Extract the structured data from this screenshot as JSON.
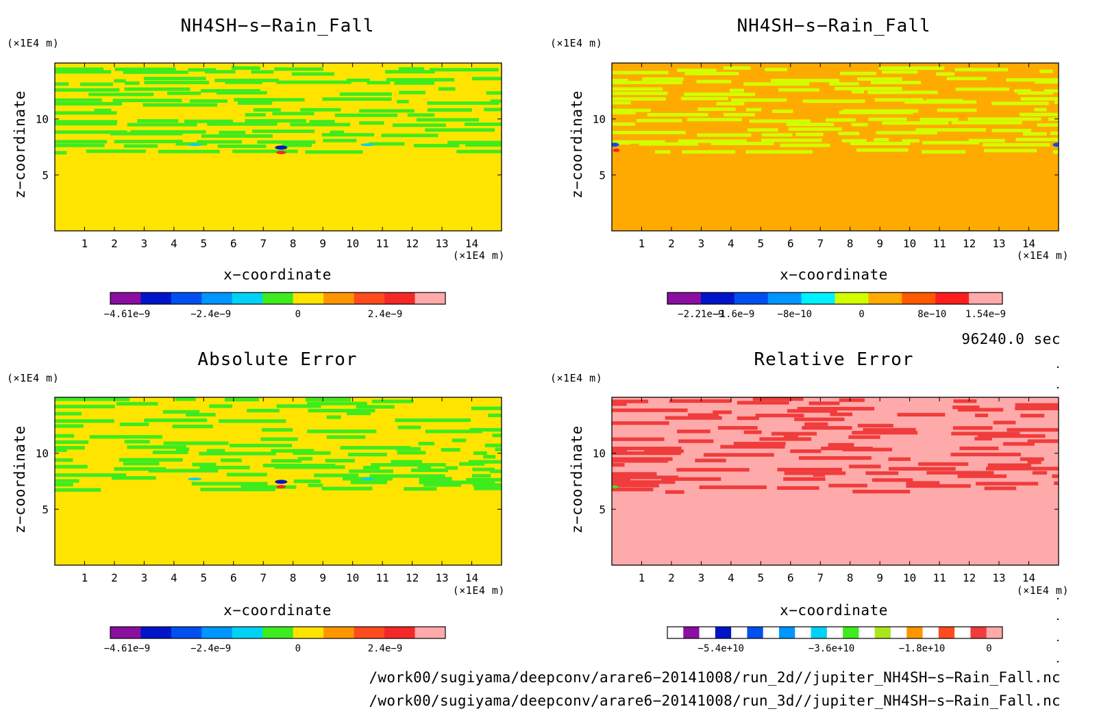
{
  "chart_data": [
    {
      "type": "heatmap",
      "title": "NH4SH−s−Rain_Fall",
      "xlabel": "x−coordinate",
      "ylabel": "z−coordinate",
      "x_unit": "(×1E4 m)",
      "y_unit": "(×1E4 m)",
      "xlim": [
        0,
        15
      ],
      "ylim": [
        0,
        15
      ],
      "x_ticks": [
        "1",
        "2",
        "3",
        "4",
        "5",
        "6",
        "7",
        "8",
        "9",
        "10",
        "11",
        "12",
        "13",
        "14"
      ],
      "y_ticks": [
        "5",
        "10"
      ],
      "background_color": "#ffe400",
      "bands": [
        {
          "z_range": [
            6.9,
            14.9
          ],
          "color": "#3eeb1e",
          "note": "alternating layers with background"
        }
      ],
      "colorbar": {
        "colors": [
          "#8a0fa0",
          "#0014c8",
          "#0050f0",
          "#0096ff",
          "#00d2f5",
          "#3eeb1e",
          "#ffe400",
          "#ff9600",
          "#ff4b1e",
          "#f52828",
          "#ffaaaa"
        ],
        "labels": [
          "−4.61e−9",
          "−2.4e−9",
          "0",
          "2.4e−9"
        ]
      }
    },
    {
      "type": "heatmap",
      "title": "NH4SH−s−Rain_Fall",
      "xlabel": "x−coordinate",
      "ylabel": "z−coordinate",
      "x_unit": "(×1E4 m)",
      "y_unit": "(×1E4 m)",
      "xlim": [
        0,
        15
      ],
      "ylim": [
        0,
        15
      ],
      "x_ticks": [
        "1",
        "2",
        "3",
        "4",
        "5",
        "6",
        "7",
        "8",
        "9",
        "10",
        "11",
        "12",
        "13",
        "14"
      ],
      "y_ticks": [
        "5",
        "10"
      ],
      "background_color": "#ffaa00",
      "bands": [
        {
          "z_range": [
            7.0,
            14.9
          ],
          "color": "#d2ff00",
          "note": "alternating layers with background"
        }
      ],
      "colorbar": {
        "colors": [
          "#8a0fa0",
          "#0014c8",
          "#0050f0",
          "#0096ff",
          "#00f0ff",
          "#d2ff00",
          "#ffaa00",
          "#ff5a00",
          "#ff1e1e",
          "#ffaaaa"
        ],
        "labels": [
          "−2.21e−9",
          "−1.6e−9",
          "−8e−10",
          "0",
          "8e−10",
          "1.54e−9"
        ]
      }
    },
    {
      "type": "heatmap",
      "title": "Absolute Error",
      "xlabel": "x−coordinate",
      "ylabel": "z−coordinate",
      "x_unit": "(×1E4 m)",
      "y_unit": "(×1E4 m)",
      "xlim": [
        0,
        15
      ],
      "ylim": [
        0,
        15
      ],
      "x_ticks": [
        "1",
        "2",
        "3",
        "4",
        "5",
        "6",
        "7",
        "8",
        "9",
        "10",
        "11",
        "12",
        "13",
        "14"
      ],
      "y_ticks": [
        "5",
        "10"
      ],
      "background_color": "#ffe400",
      "bands": [
        {
          "z_range": [
            6.6,
            14.9
          ],
          "color": "#3eeb1e",
          "note": "patchy layers with background"
        }
      ],
      "colorbar": {
        "colors": [
          "#8a0fa0",
          "#0014c8",
          "#0050f0",
          "#0096ff",
          "#00d2f5",
          "#3eeb1e",
          "#ffe400",
          "#ff9600",
          "#ff4b1e",
          "#f52828",
          "#ffaaaa"
        ],
        "labels": [
          "−4.61e−9",
          "−2.4e−9",
          "0",
          "2.4e−9"
        ]
      }
    },
    {
      "type": "heatmap",
      "title": "Relative Error",
      "xlabel": "x−coordinate",
      "ylabel": "z−coordinate",
      "x_unit": "(×1E4 m)",
      "y_unit": "(×1E4 m)",
      "xlim": [
        0,
        15
      ],
      "ylim": [
        0,
        15
      ],
      "x_ticks": [
        "1",
        "2",
        "3",
        "4",
        "5",
        "6",
        "7",
        "8",
        "9",
        "10",
        "11",
        "12",
        "13",
        "14"
      ],
      "y_ticks": [
        "5",
        "10"
      ],
      "background_color": "#ffaaaa",
      "bands": [
        {
          "z_range": [
            6.5,
            14.9
          ],
          "color": "#f03c3c",
          "note": "patchy layers with background"
        }
      ],
      "colorbar": {
        "colors": [
          "#ffffff",
          "#8a0fa0",
          "#ffffff",
          "#0014c8",
          "#ffffff",
          "#0050f0",
          "#ffffff",
          "#0096ff",
          "#ffffff",
          "#00d2f5",
          "#ffffff",
          "#3eeb1e",
          "#ffffff",
          "#aae61e",
          "#ffffff",
          "#ff9600",
          "#ffffff",
          "#ff4b1e",
          "#ffffff",
          "#f03c3c",
          "#ffaaaa"
        ],
        "labels": [
          "−5.4e+10",
          "−3.6e+10",
          "−1.8e+10",
          "0"
        ]
      }
    }
  ],
  "time_label": "96240.0 sec",
  "footer": {
    "line1": "/work00/sugiyama/deepconv/arare6−20141008/run_2d//jupiter_NH4SH−s−Rain_Fall.nc",
    "line2": "/work00/sugiyama/deepconv/arare6−20141008/run_3d//jupiter_NH4SH−s−Rain_Fall.nc"
  }
}
